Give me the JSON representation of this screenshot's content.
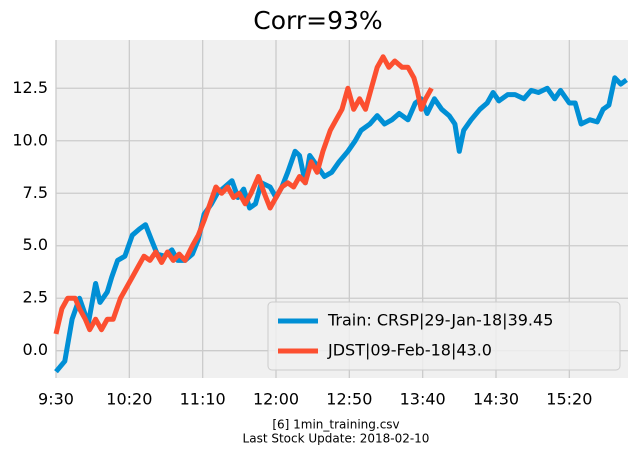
{
  "chart_data": {
    "type": "line",
    "title": "Corr=93%",
    "footer": [
      "[6] 1min_training.csv",
      "Last Stock Update: 2018-02-10"
    ],
    "xlim": [
      570,
      960
    ],
    "xticks": [
      {
        "value": 570,
        "label": "9:30"
      },
      {
        "value": 620,
        "label": "10:20"
      },
      {
        "value": 670,
        "label": "11:10"
      },
      {
        "value": 720,
        "label": "12:00"
      },
      {
        "value": 770,
        "label": "12:50"
      },
      {
        "value": 820,
        "label": "13:40"
      },
      {
        "value": 870,
        "label": "14:30"
      },
      {
        "value": 920,
        "label": "15:20"
      }
    ],
    "ylim": [
      -1.3,
      14.8
    ],
    "yticks": [
      {
        "value": 0,
        "label": "0.0"
      },
      2.5,
      {
        "value": 5,
        "label": "5.0"
      },
      7.5,
      {
        "value": 10,
        "label": "10.0"
      },
      12.5
    ],
    "grid": true,
    "legend": "lower right",
    "series": [
      {
        "name": "Train: CRSP|29-Jan-18|39.45",
        "color": "#008fd5",
        "x": [
          570,
          576,
          581,
          586,
          592,
          597,
          600,
          605,
          608,
          612,
          617,
          622,
          627,
          631,
          635,
          639,
          644,
          649,
          653,
          658,
          663,
          667,
          671,
          676,
          680,
          685,
          690,
          694,
          698,
          702,
          706,
          710,
          716,
          720,
          724,
          728,
          733,
          736,
          740,
          743,
          748,
          753,
          758,
          763,
          769,
          774,
          778,
          784,
          789,
          794,
          799,
          804,
          810,
          815,
          819,
          823,
          828,
          833,
          838,
          842,
          845,
          848,
          853,
          859,
          864,
          868,
          872,
          878,
          883,
          889,
          894,
          899,
          905,
          910,
          914,
          920,
          924,
          928,
          934,
          939,
          943,
          947,
          951,
          955,
          959
        ],
        "values": [
          -1.0,
          -0.5,
          1.5,
          2.5,
          1.3,
          3.2,
          2.3,
          2.8,
          3.5,
          4.3,
          4.5,
          5.5,
          5.8,
          6.0,
          5.3,
          4.6,
          4.5,
          4.8,
          4.3,
          4.3,
          4.6,
          5.3,
          6.5,
          7.0,
          7.5,
          7.8,
          8.1,
          7.3,
          7.7,
          6.8,
          7.0,
          8.0,
          7.8,
          7.3,
          7.8,
          8.5,
          9.5,
          9.3,
          8.0,
          9.3,
          8.8,
          8.3,
          8.5,
          9.0,
          9.5,
          10.0,
          10.5,
          10.8,
          11.2,
          10.8,
          11.0,
          11.3,
          11.0,
          11.8,
          12.0,
          11.3,
          12.0,
          11.5,
          11.2,
          10.8,
          9.5,
          10.5,
          11.0,
          11.5,
          11.8,
          12.3,
          11.9,
          12.2,
          12.2,
          12.0,
          12.4,
          12.3,
          12.5,
          12.0,
          12.4,
          11.8,
          11.8,
          10.8,
          11.0,
          10.9,
          11.5,
          11.7,
          13.0,
          12.7,
          12.9
        ]
      },
      {
        "name": "JDST|09-Feb-18|43.0",
        "color": "#fc4f30",
        "x": [
          570,
          574,
          578,
          583,
          586,
          590,
          593,
          597,
          601,
          605,
          609,
          614,
          618,
          622,
          626,
          630,
          634,
          638,
          642,
          646,
          650,
          654,
          658,
          663,
          667,
          671,
          675,
          679,
          683,
          687,
          691,
          695,
          699,
          703,
          708,
          712,
          716,
          720,
          724,
          728,
          732,
          736,
          740,
          744,
          748,
          752,
          757,
          761,
          765,
          769,
          773,
          777,
          781,
          785,
          789,
          793,
          797,
          801,
          806,
          810,
          814,
          816,
          819,
          822,
          826
        ],
        "values": [
          0.8,
          2.0,
          2.5,
          2.5,
          2.0,
          1.5,
          1.0,
          1.5,
          1.0,
          1.5,
          1.5,
          2.5,
          3.0,
          3.5,
          4.0,
          4.5,
          4.3,
          4.7,
          4.2,
          4.7,
          4.3,
          4.6,
          4.3,
          5.0,
          5.5,
          6.2,
          7.0,
          7.8,
          7.5,
          7.8,
          7.3,
          7.5,
          7.0,
          7.5,
          8.3,
          7.5,
          6.8,
          7.3,
          7.8,
          8.0,
          7.8,
          8.3,
          8.0,
          9.0,
          8.5,
          9.5,
          10.5,
          11.0,
          11.5,
          12.5,
          11.5,
          12.0,
          11.5,
          12.5,
          13.5,
          14.0,
          13.5,
          13.8,
          13.5,
          13.5,
          13.0,
          12.5,
          11.5,
          12.0,
          12.5
        ]
      }
    ]
  }
}
